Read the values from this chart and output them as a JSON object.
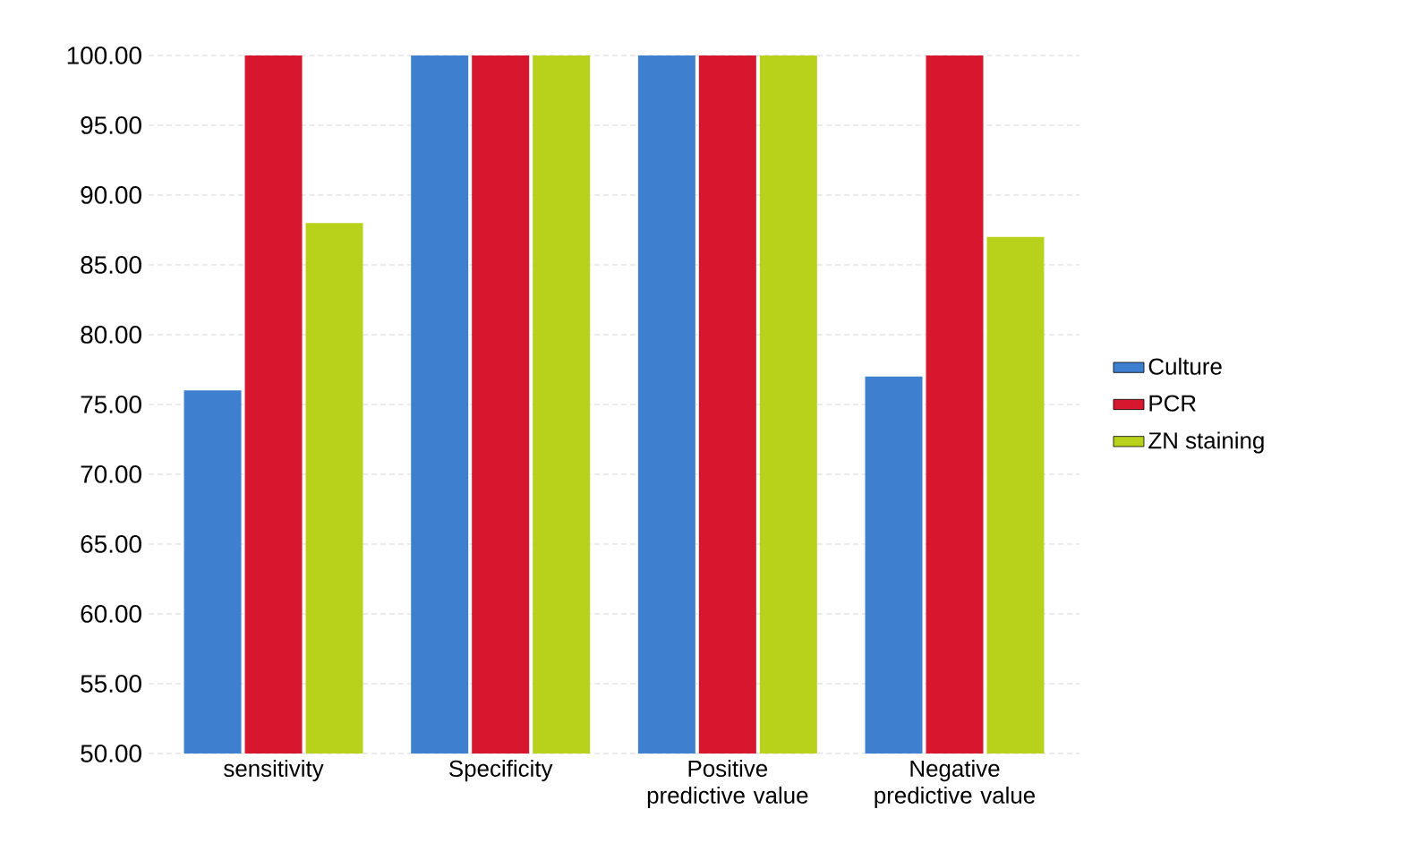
{
  "chart_data": {
    "type": "bar",
    "categories": [
      "sensitivity",
      "Specificity",
      "Positive predictive value",
      "Negative predictive value"
    ],
    "series": [
      {
        "name": "Culture",
        "color": "#3f7fcf",
        "values": [
          76,
          100,
          100,
          77
        ]
      },
      {
        "name": "PCR",
        "color": "#d6172e",
        "values": [
          100,
          100,
          100,
          100
        ]
      },
      {
        "name": "ZN staining",
        "color": "#b8d21c",
        "values": [
          88,
          100,
          100,
          87
        ]
      }
    ],
    "ylim": [
      50,
      100
    ],
    "yticks": [
      {
        "value": 50,
        "label": "50.00"
      },
      {
        "value": 55,
        "label": "55.00"
      },
      {
        "value": 60,
        "label": "60.00"
      },
      {
        "value": 65,
        "label": "65.00"
      },
      {
        "value": 70,
        "label": "70.00"
      },
      {
        "value": 75,
        "label": "75.00"
      },
      {
        "value": 80,
        "label": "80.00"
      },
      {
        "value": 85,
        "label": "85.00"
      },
      {
        "value": 90,
        "label": "90.00"
      },
      {
        "value": 95,
        "label": "95.00"
      },
      {
        "value": 100,
        "label": "100.00"
      }
    ],
    "grid": "y",
    "legend": "right"
  }
}
